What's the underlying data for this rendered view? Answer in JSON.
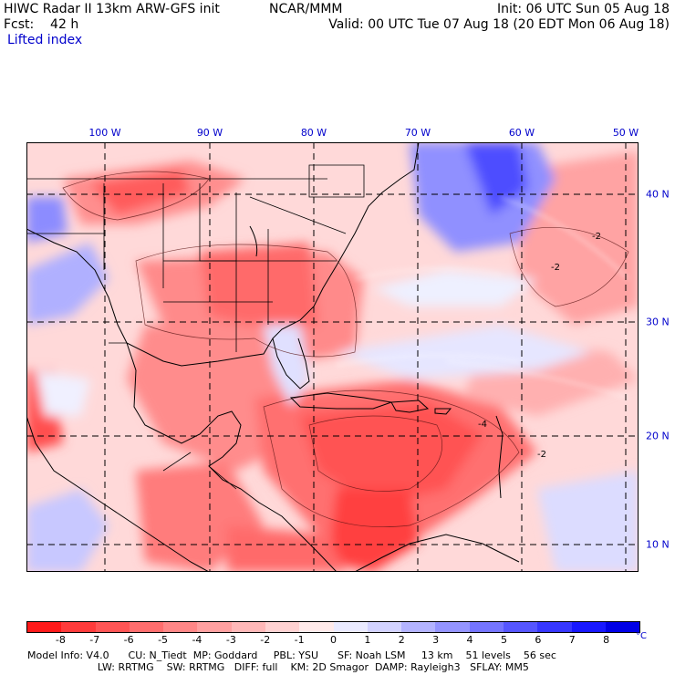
{
  "header": {
    "title": "HIWC Radar II 13km ARW-GFS init",
    "center": "NCAR/MMM",
    "init": "Init: 06 UTC Sun 05 Aug 18",
    "forecast": "Fcst:    42 h",
    "valid": "Valid: 00 UTC Tue 07 Aug 18 (20 EDT Mon 06 Aug 18)",
    "field": "Lifted index"
  },
  "map": {
    "lon_labels": [
      "100 W",
      "90 W",
      "80 W",
      "70 W",
      "60 W",
      "50 W"
    ],
    "lat_labels": [
      "40 N",
      "30 N",
      "20 N",
      "10 N"
    ],
    "contour_labels": [
      "-2",
      "-2",
      "-2",
      "-4"
    ]
  },
  "colorbar": {
    "tick_labels": [
      "-8",
      "-7",
      "-6",
      "-5",
      "-4",
      "-3",
      "-2",
      "-1",
      "0",
      "1",
      "2",
      "3",
      "4",
      "5",
      "6",
      "7",
      "8"
    ],
    "unit": "°C",
    "colors": [
      "#ff1a1a",
      "#ff3b3b",
      "#ff5555",
      "#ff6e6e",
      "#ff8787",
      "#ffa0a0",
      "#ffb8b8",
      "#ffd2d2",
      "#ffeaea",
      "#eaeaff",
      "#d2d2ff",
      "#b3b3ff",
      "#9494ff",
      "#7575ff",
      "#5656ff",
      "#3737ff",
      "#1818ff",
      "#0000e6"
    ]
  },
  "footer": {
    "line1": "Model Info: V4.0      CU: N_Tiedt  MP: Goddard     PBL: YSU      SF: Noah LSM     13 km    51 levels    56 sec",
    "line2": "                      LW: RRTMG    SW: RRTMG   DIFF: full    KM: 2D Smagor  DAMP: Rayleigh3   SFLAY: MM5"
  }
}
